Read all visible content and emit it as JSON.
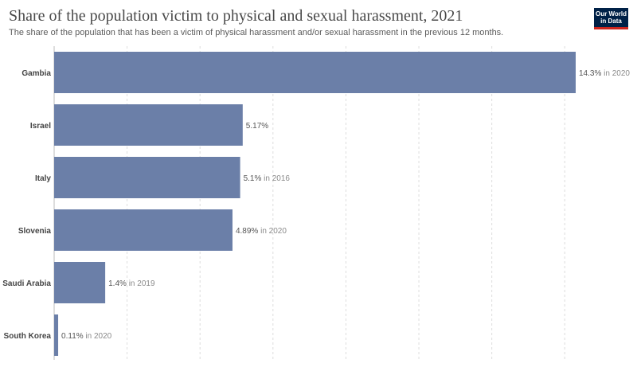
{
  "header": {
    "title": "Share of the population victim to physical and sexual harassment, 2021",
    "subtitle": "The share of the population that has been a victim of physical harassment and/or sexual harassment in the previous 12 months."
  },
  "logo": {
    "line1": "Our World",
    "line2": "in Data"
  },
  "colors": {
    "bar": "#6b7fa8",
    "label": "#444444",
    "value": "#555555",
    "year": "#8a8a8a",
    "grid": "#dddddd",
    "logo_bg": "#002147",
    "logo_accent": "#ce261e"
  },
  "chart_data": {
    "type": "bar",
    "orientation": "horizontal",
    "categories": [
      "Gambia",
      "Israel",
      "Italy",
      "Slovenia",
      "Saudi Arabia",
      "South Korea"
    ],
    "values": [
      14.3,
      5.17,
      5.1,
      4.89,
      1.4,
      0.11
    ],
    "value_labels": [
      "14.3%",
      "5.17%",
      "5.1%",
      "4.89%",
      "1.4%",
      "0.11%"
    ],
    "year_labels": [
      "in 2020",
      "",
      "in 2016",
      "in 2020",
      "in 2019",
      "in 2020"
    ],
    "xlim": [
      0,
      14.3
    ],
    "grid": true,
    "grid_values": [
      0,
      2,
      4,
      6,
      8,
      10,
      12,
      14
    ]
  }
}
